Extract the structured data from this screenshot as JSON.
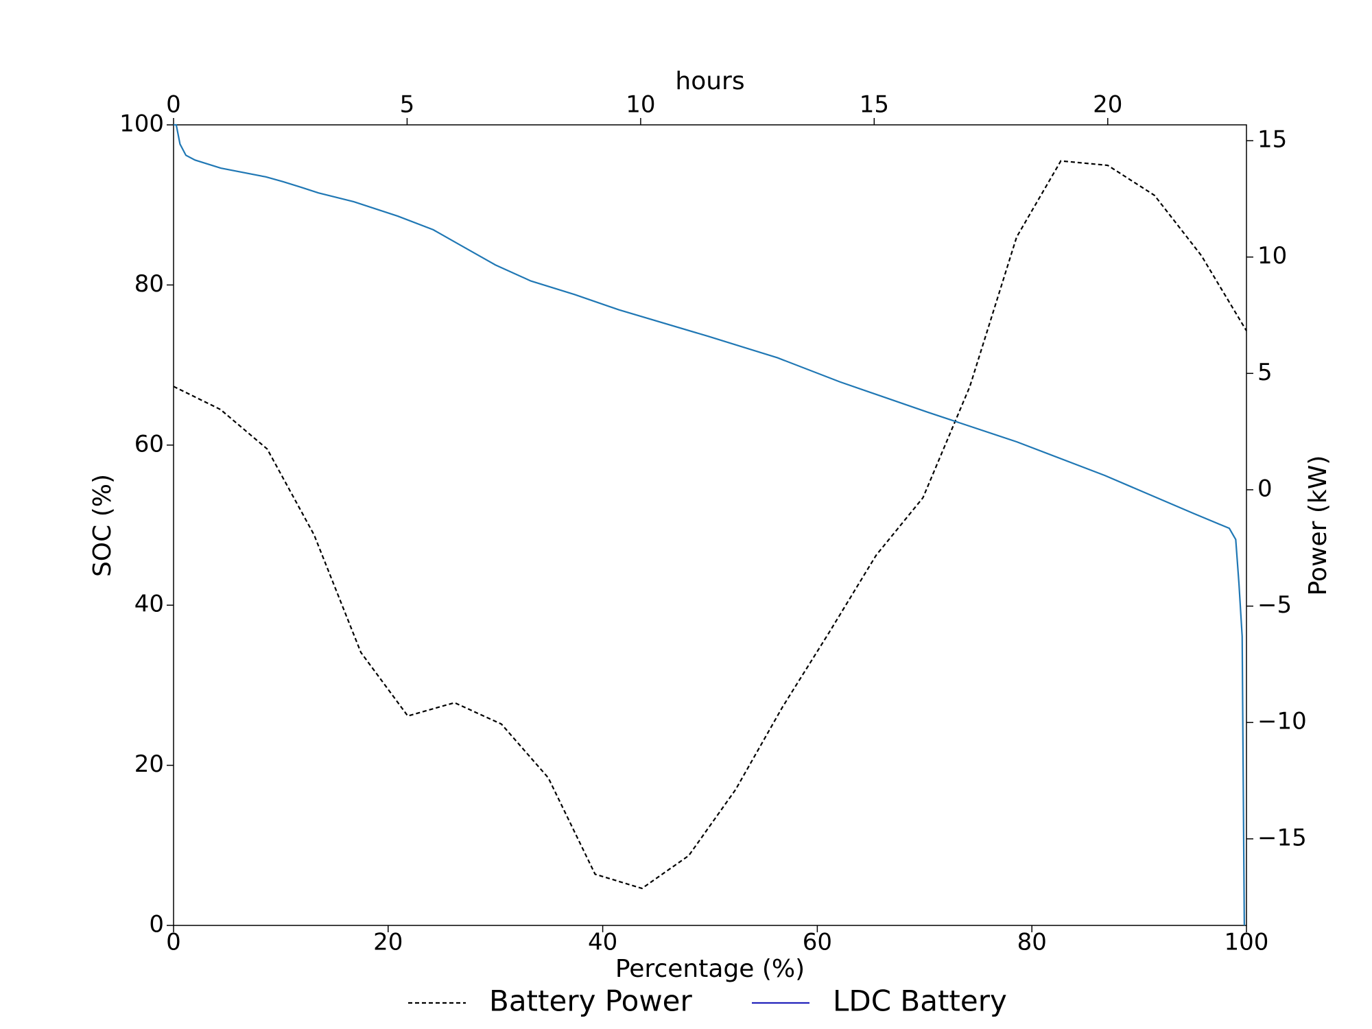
{
  "chart_data": {
    "type": "line",
    "xlabel": "Percentage (%)",
    "ylabel": "SOC (%)",
    "y2label": "Power (kW)",
    "x2label": "hours",
    "xlim": [
      0,
      100
    ],
    "xticks": [
      0,
      20,
      40,
      60,
      80,
      100
    ],
    "ylim": [
      0,
      100
    ],
    "yticks": [
      0,
      20,
      40,
      60,
      80,
      100
    ],
    "y2lim": [
      -18.72,
      15.68
    ],
    "y2ticks": [
      {
        "value": -15,
        "label": "−15"
      },
      {
        "value": -10,
        "label": "−10"
      },
      {
        "value": -5,
        "label": "−5"
      },
      0,
      5,
      10,
      15
    ],
    "x2lim": [
      0,
      22.97
    ],
    "x2ticks": [
      0,
      5,
      10,
      15,
      20
    ],
    "legend": "bottom",
    "series": [
      {
        "name": "Battery Power",
        "color": "#000000",
        "dash": true,
        "axis": "y2",
        "x": [
          0,
          4.37,
          8.73,
          13.1,
          17.46,
          21.83,
          26.19,
          30.56,
          34.93,
          39.29,
          43.66,
          48.02,
          52.39,
          56.75,
          61.12,
          65.49,
          69.85,
          74.22,
          78.58,
          82.7,
          87.07,
          91.43,
          95.8,
          100
        ],
        "values": [
          4.44,
          3.45,
          1.75,
          -1.94,
          -6.99,
          -9.72,
          -9.15,
          -10.07,
          -12.38,
          -16.52,
          -17.13,
          -15.72,
          -12.88,
          -9.34,
          -6.12,
          -2.81,
          -0.34,
          4.44,
          10.86,
          14.13,
          13.94,
          12.65,
          10.06,
          6.83
        ]
      },
      {
        "name": "LDC Battery",
        "color": "#1f77b4",
        "legend_color": "#2222bb",
        "dash": false,
        "x": [
          0,
          0.25,
          0.6,
          1.15,
          2,
          4.4,
          8.6,
          10.2,
          11.9,
          13.5,
          16.8,
          20.9,
          24.2,
          26.7,
          30,
          33.3,
          37.4,
          41.5,
          49.8,
          56.3,
          62.1,
          70.3,
          78.6,
          86.8,
          95,
          98.4,
          99.0,
          99.3,
          99.6,
          99.8
        ],
        "values": [
          100,
          100,
          97.6,
          96.2,
          95.6,
          94.6,
          93.5,
          92.9,
          92.2,
          91.5,
          90.4,
          88.6,
          86.9,
          85.0,
          82.5,
          80.5,
          78.8,
          76.9,
          73.6,
          70.9,
          67.9,
          64.1,
          60.4,
          56.2,
          51.5,
          49.6,
          48.2,
          42.7,
          36.1,
          0
        ]
      }
    ]
  }
}
